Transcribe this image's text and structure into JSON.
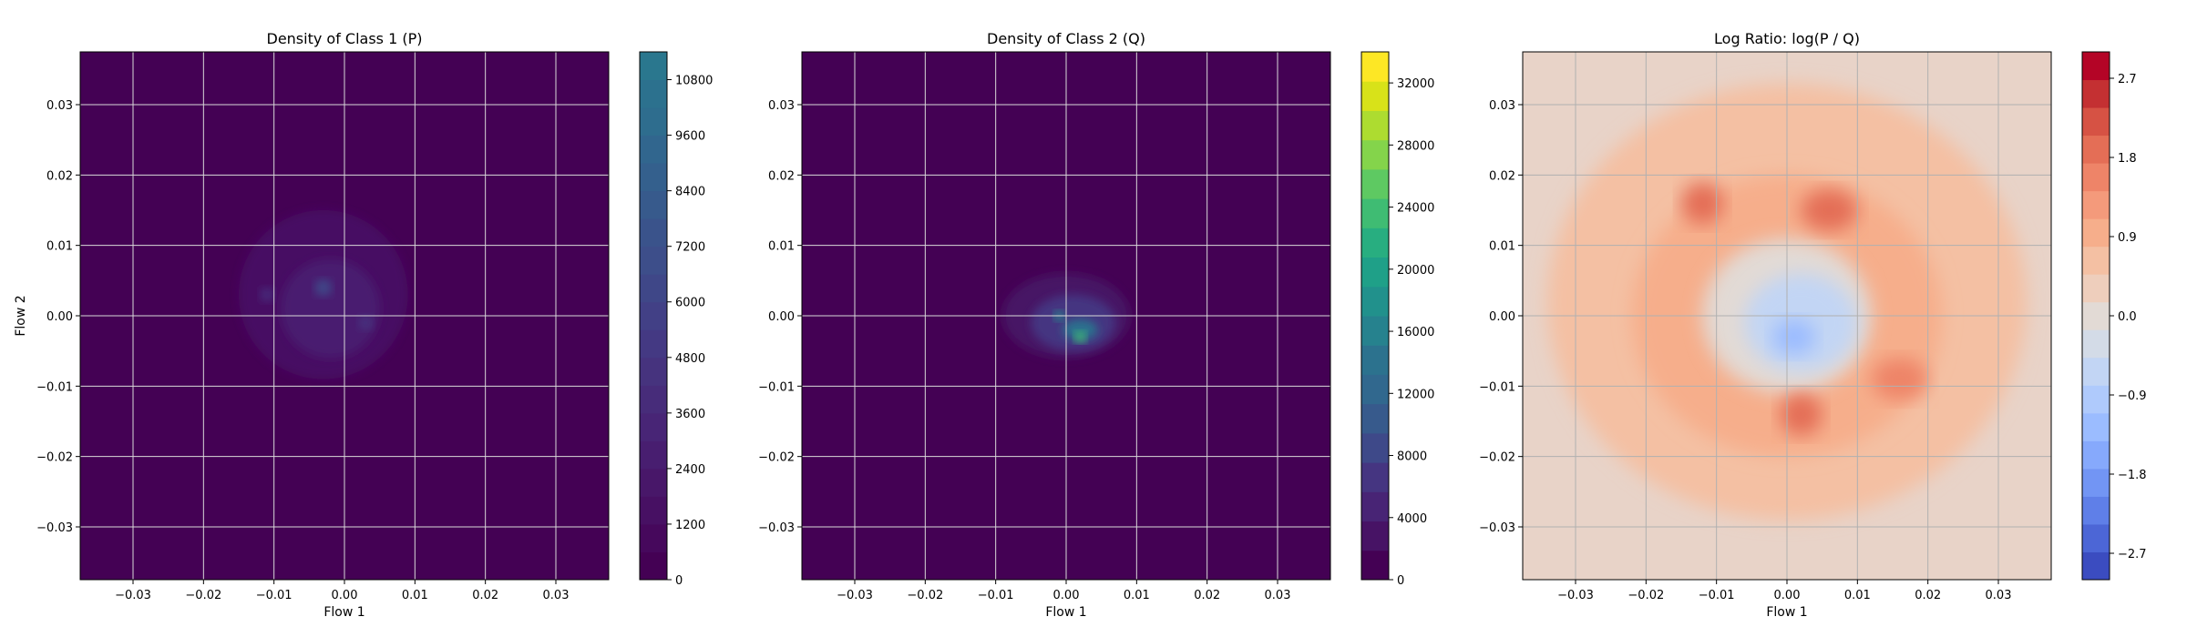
{
  "chart_data": [
    {
      "type": "heatmap",
      "title": "Density of Class 1 (P)",
      "xlabel": "Flow 1",
      "ylabel": "Flow 2",
      "xlim": [
        -0.0375,
        0.0375
      ],
      "ylim": [
        -0.0375,
        0.0375
      ],
      "xticks": [
        "−0.03",
        "−0.02",
        "−0.01",
        "0.00",
        "0.01",
        "0.02",
        "0.03"
      ],
      "xtick_values": [
        -0.03,
        -0.02,
        -0.01,
        0.0,
        0.01,
        0.02,
        0.03
      ],
      "yticks": [
        "−0.03",
        "−0.02",
        "−0.01",
        "0.00",
        "0.01",
        "0.02",
        "0.03"
      ],
      "ytick_values": [
        -0.03,
        -0.02,
        -0.01,
        0.0,
        0.01,
        0.02,
        0.03
      ],
      "grid": true,
      "colormap": "viridis",
      "background_color": "#440154",
      "colorbar": {
        "range": [
          0,
          11400
        ],
        "ticks": [
          "0",
          "1200",
          "2400",
          "3600",
          "4800",
          "6000",
          "7200",
          "8400",
          "9600",
          "10800"
        ],
        "tick_values": [
          0,
          1200,
          2400,
          3600,
          4800,
          6000,
          7200,
          8400,
          9600,
          10800
        ],
        "colors": [
          "#440154",
          "#46085c",
          "#471063",
          "#481769",
          "#481e70",
          "#482576",
          "#472c7a",
          "#46337e",
          "#443983",
          "#424086",
          "#3f4788",
          "#3d4e8a",
          "#3a538b",
          "#375a8c",
          "#34608d",
          "#31668e",
          "#2e6d8e",
          "#2c718e",
          "#2a778e"
        ]
      },
      "blobs": [
        {
          "x": -0.003,
          "y": 0.003,
          "rx": 0.012,
          "ry": 0.012,
          "value": 1300
        },
        {
          "x": -0.002,
          "y": 0.001,
          "rx": 0.007,
          "ry": 0.007,
          "value": 2600
        },
        {
          "x": -0.003,
          "y": 0.004,
          "rx": 0.0012,
          "ry": 0.0012,
          "value": 6500
        },
        {
          "x": -0.011,
          "y": 0.003,
          "rx": 0.001,
          "ry": 0.001,
          "value": 4000
        },
        {
          "x": 0.003,
          "y": -0.001,
          "rx": 0.001,
          "ry": 0.001,
          "value": 4200
        }
      ]
    },
    {
      "type": "heatmap",
      "title": "Density of Class 2 (Q)",
      "xlabel": "Flow 1",
      "ylabel": "",
      "xlim": [
        -0.0375,
        0.0375
      ],
      "ylim": [
        -0.0375,
        0.0375
      ],
      "xticks": [
        "−0.03",
        "−0.02",
        "−0.01",
        "0.00",
        "0.01",
        "0.02",
        "0.03"
      ],
      "xtick_values": [
        -0.03,
        -0.02,
        -0.01,
        0.0,
        0.01,
        0.02,
        0.03
      ],
      "yticks": [
        "−0.03",
        "−0.02",
        "−0.01",
        "0.00",
        "0.01",
        "0.02",
        "0.03"
      ],
      "ytick_values": [
        -0.03,
        -0.02,
        -0.01,
        0.0,
        0.01,
        0.02,
        0.03
      ],
      "grid": true,
      "colormap": "viridis",
      "background_color": "#440154",
      "colorbar": {
        "range": [
          0,
          34000
        ],
        "ticks": [
          "0",
          "4000",
          "8000",
          "12000",
          "16000",
          "20000",
          "24000",
          "28000",
          "32000"
        ],
        "tick_values": [
          0,
          4000,
          8000,
          12000,
          16000,
          20000,
          24000,
          28000,
          32000
        ],
        "colors": [
          "#440154",
          "#471365",
          "#482475",
          "#453581",
          "#3e4989",
          "#375a8c",
          "#31688e",
          "#2c728e",
          "#26828e",
          "#21918c",
          "#1fa088",
          "#28ae80",
          "#3fbc73",
          "#5ec962",
          "#84d44b",
          "#addc30",
          "#d8e219",
          "#fde725"
        ]
      },
      "blobs": [
        {
          "x": 0.0,
          "y": 0.0,
          "rx": 0.009,
          "ry": 0.006,
          "value": 2500
        },
        {
          "x": 0.001,
          "y": -0.001,
          "rx": 0.006,
          "ry": 0.004,
          "value": 6000
        },
        {
          "x": 0.002,
          "y": -0.002,
          "rx": 0.0025,
          "ry": 0.0015,
          "value": 14000
        },
        {
          "x": 0.002,
          "y": -0.003,
          "rx": 0.0008,
          "ry": 0.0008,
          "value": 24000
        },
        {
          "x": -0.001,
          "y": 0.0,
          "rx": 0.0007,
          "ry": 0.0007,
          "value": 18000
        }
      ]
    },
    {
      "type": "heatmap",
      "title": "Log Ratio: log(P / Q)",
      "xlabel": "Flow 1",
      "ylabel": "",
      "xlim": [
        -0.0375,
        0.0375
      ],
      "ylim": [
        -0.0375,
        0.0375
      ],
      "xticks": [
        "−0.03",
        "−0.02",
        "−0.01",
        "0.00",
        "0.01",
        "0.02",
        "0.03"
      ],
      "xtick_values": [
        -0.03,
        -0.02,
        -0.01,
        0.0,
        0.01,
        0.02,
        0.03
      ],
      "yticks": [
        "−0.03",
        "−0.02",
        "−0.01",
        "0.00",
        "0.01",
        "0.02",
        "0.03"
      ],
      "ytick_values": [
        -0.03,
        -0.02,
        -0.01,
        0.0,
        0.01,
        0.02,
        0.03
      ],
      "grid": true,
      "colormap": "coolwarm",
      "background_color": "#e8d3c8",
      "colorbar": {
        "range": [
          -3.0,
          3.0
        ],
        "ticks": [
          "−2.7",
          "−1.8",
          "−0.9",
          "0.0",
          "0.9",
          "1.8",
          "2.7"
        ],
        "tick_values": [
          -2.7,
          -1.8,
          -0.9,
          0.0,
          0.9,
          1.8,
          2.7
        ],
        "colors": [
          "#3b4cc0",
          "#4c66d6",
          "#5f7fe8",
          "#7295f4",
          "#86a9fc",
          "#9bbcff",
          "#afcafc",
          "#c2d5f4",
          "#d3dbe7",
          "#e2dad5",
          "#eecebc",
          "#f4c0a3",
          "#f6ae8b",
          "#f49a7b",
          "#ee8468",
          "#e46e56",
          "#d65244",
          "#c43032",
          "#b40426"
        ]
      },
      "blobs": [
        {
          "x": 0.0,
          "y": 0.002,
          "rx": 0.034,
          "ry": 0.031,
          "value": 0.55
        },
        {
          "x": 0.0,
          "y": 0.0,
          "rx": 0.022,
          "ry": 0.02,
          "value": 0.95
        },
        {
          "x": 0.0,
          "y": 0.0,
          "rx": 0.012,
          "ry": 0.011,
          "value": 0.1
        },
        {
          "x": 0.002,
          "y": -0.001,
          "rx": 0.008,
          "ry": 0.007,
          "value": -0.6
        },
        {
          "x": 0.001,
          "y": -0.003,
          "rx": 0.003,
          "ry": 0.0025,
          "value": -1.3
        },
        {
          "x": -0.012,
          "y": 0.016,
          "rx": 0.003,
          "ry": 0.003,
          "value": 1.9
        },
        {
          "x": 0.006,
          "y": 0.015,
          "rx": 0.004,
          "ry": 0.003,
          "value": 1.9
        },
        {
          "x": 0.016,
          "y": -0.009,
          "rx": 0.004,
          "ry": 0.003,
          "value": 1.7
        },
        {
          "x": 0.002,
          "y": -0.014,
          "rx": 0.003,
          "ry": 0.003,
          "value": 2.0
        }
      ]
    }
  ]
}
